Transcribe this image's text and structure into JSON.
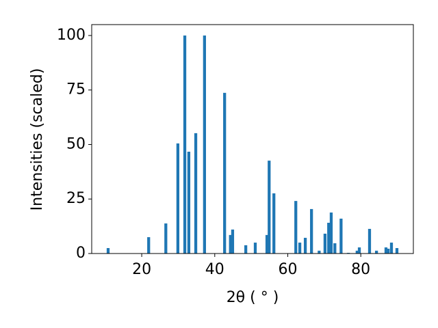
{
  "chart_data": {
    "type": "bar",
    "xlabel": "2θ ( ° )",
    "ylabel": "Intensities (scaled)",
    "color": "#1f77b4",
    "x": [
      10.8,
      21.9,
      26.6,
      29.9,
      31.8,
      32.9,
      34.8,
      37.2,
      42.7,
      44.3,
      44.9,
      48.5,
      51.1,
      54.3,
      54.9,
      56.2,
      62.2,
      63.3,
      64.8,
      66.5,
      68.6,
      70.2,
      71.2,
      71.9,
      72.9,
      74.6,
      76.6,
      79.0,
      79.6,
      82.4,
      84.3,
      86.9,
      87.5,
      88.4,
      89.9
    ],
    "values": [
      2.5,
      7.5,
      13.8,
      50.5,
      100,
      46.7,
      55.2,
      100,
      73.7,
      8.5,
      11,
      3.8,
      5,
      8.5,
      42.6,
      27.6,
      24.1,
      5,
      7.2,
      20.4,
      1.3,
      9.1,
      14.1,
      18.8,
      4.7,
      16,
      0.3,
      1.3,
      2.8,
      11.3,
      1.3,
      2.8,
      2.2,
      5,
      2.5
    ],
    "xlim": [
      6.3,
      94.4
    ],
    "ylim": [
      0,
      105
    ],
    "xticks": [
      20,
      40,
      60,
      80
    ],
    "yticks": [
      0,
      25,
      50,
      75,
      100
    ]
  }
}
